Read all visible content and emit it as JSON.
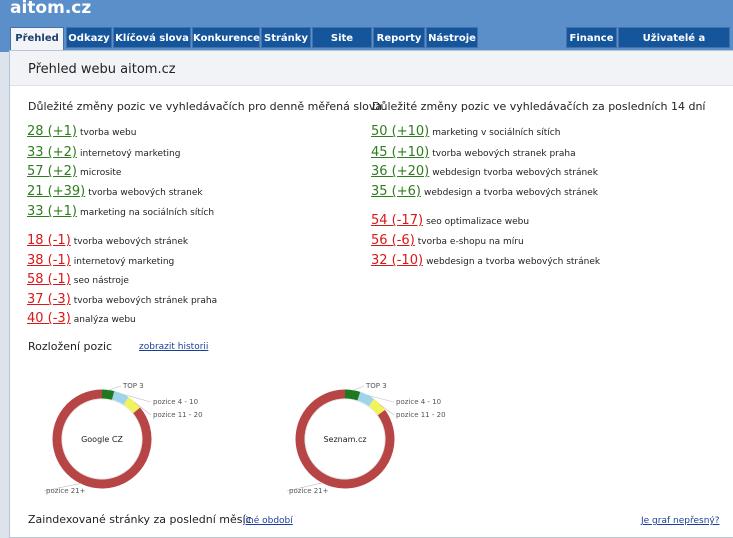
{
  "brand": "aitom.cz",
  "tabs": [
    "Přehled",
    "Odkazy",
    "Klíčová slova",
    "Konkurence",
    "Stránky",
    "Site finder",
    "Reporty",
    "Nástroje"
  ],
  "right_tabs": [
    "Finance",
    "Uživatelé a oprávnění"
  ],
  "page_title": "Přehled webu aitom.cz",
  "left": {
    "title": "Důležité změny pozic ve vyhledávačích pro denně měřená slova",
    "up": [
      {
        "pos": "28 (+1)",
        "kw": "tvorba webu"
      },
      {
        "pos": "33 (+2)",
        "kw": "internetový marketing"
      },
      {
        "pos": "57 (+2)",
        "kw": "microsite"
      },
      {
        "pos": "21 (+39)",
        "kw": "tvorba webových stranek"
      },
      {
        "pos": "33 (+1)",
        "kw": "marketing na sociálních sítích"
      }
    ],
    "down": [
      {
        "pos": "18 (-1)",
        "kw": "tvorba webových stránek"
      },
      {
        "pos": "38 (-1)",
        "kw": "internetový marketing"
      },
      {
        "pos": "58 (-1)",
        "kw": "seo nástroje"
      },
      {
        "pos": "37 (-3)",
        "kw": "tvorba webových stránek praha"
      },
      {
        "pos": "40 (-3)",
        "kw": "analýza webu"
      }
    ]
  },
  "right": {
    "title": "Důležité změny pozic ve vyhledávačích za posledních 14 dní",
    "up": [
      {
        "pos": "50 (+10)",
        "kw": "marketing v sociálních sítích"
      },
      {
        "pos": "45 (+10)",
        "kw": "tvorba webových stranek praha"
      },
      {
        "pos": "36 (+20)",
        "kw": "webdesign tvorba webových stránek"
      },
      {
        "pos": "35 (+6)",
        "kw": "webdesign a tvorba webových stránek"
      }
    ],
    "down": [
      {
        "pos": "54 (-17)",
        "kw": "seo optimalizace webu"
      },
      {
        "pos": "56 (-6)",
        "kw": "tvorba e-shopu na míru"
      },
      {
        "pos": "32 (-10)",
        "kw": "webdesign a tvorba webových stránek"
      }
    ]
  },
  "distribution": {
    "title": "Rozložení pozic",
    "history_link": "zobrazit historii"
  },
  "indexed": {
    "title": "Zaindexované stránky za poslední měsíc",
    "other_period": "jiné období",
    "wrong_chart": "Je graf nepřesný?"
  },
  "colors": {
    "top3": "#1f7a1f",
    "p4_10": "#9fd4ea",
    "p11_20": "#f2f25a",
    "p21": "#b84545"
  },
  "chart_data": [
    {
      "type": "pie",
      "title": "Google CZ",
      "categories": [
        "TOP 3",
        "pozice 4 - 10",
        "pozice 11 - 20",
        "pozice 21+"
      ],
      "values": [
        4,
        5,
        5,
        86
      ]
    },
    {
      "type": "pie",
      "title": "Seznam.cz",
      "categories": [
        "TOP 3",
        "pozice 4 - 10",
        "pozice 11 - 20",
        "pozice 21+"
      ],
      "values": [
        5,
        5,
        5,
        85
      ]
    }
  ]
}
